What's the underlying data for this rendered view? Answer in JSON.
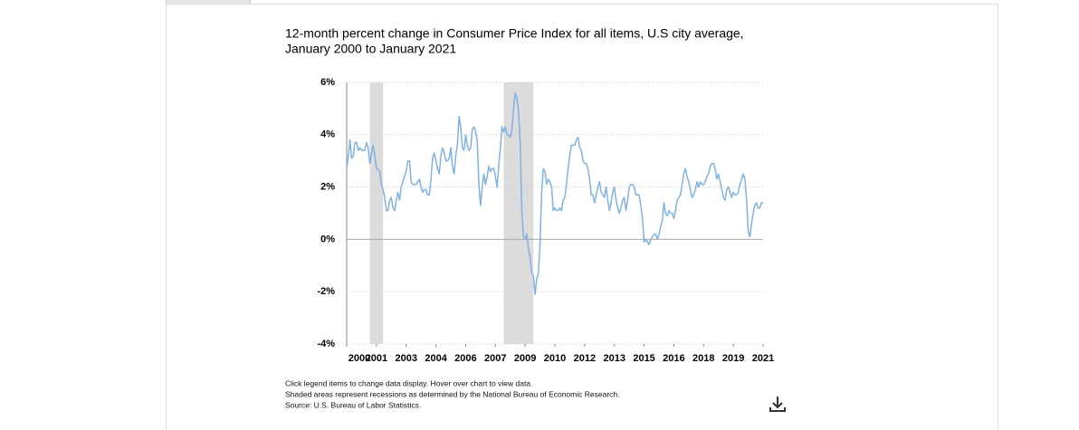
{
  "chart_data": {
    "type": "line",
    "title": [
      "12-month percent change in Consumer Price Index for all items, U.S city average,",
      "January 2000 to January 2021"
    ],
    "notes": [
      "Click legend items to change data display. Hover over chart to view data.",
      "Shaded areas represent recessions as determined by the National Bureau of Economic Research.",
      "Source: U.S. Bureau of Labor Statistics."
    ],
    "xlim": [
      2000,
      2021
    ],
    "xticks": [
      {
        "value": 2000,
        "label": "2000"
      },
      {
        "value": 2001.5,
        "label": "2001"
      },
      {
        "value": 2003,
        "label": "2003"
      },
      {
        "value": 2004.5,
        "label": "2004"
      },
      {
        "value": 2006,
        "label": "2006"
      },
      {
        "value": 2007.5,
        "label": "2007"
      },
      {
        "value": 2009,
        "label": "2009"
      },
      {
        "value": 2010.5,
        "label": "2010"
      },
      {
        "value": 2012,
        "label": "2012"
      },
      {
        "value": 2013.5,
        "label": "2013"
      },
      {
        "value": 2015,
        "label": "2015"
      },
      {
        "value": 2016.5,
        "label": "2016"
      },
      {
        "value": 2018,
        "label": "2018"
      },
      {
        "value": 2019.5,
        "label": "2019"
      },
      {
        "value": 2021,
        "label": "2021"
      }
    ],
    "ylim": [
      -4,
      6
    ],
    "yticks": [
      {
        "value": -4,
        "label": "-4%"
      },
      {
        "value": -2,
        "label": "-2%"
      },
      {
        "value": 0,
        "label": "0%"
      },
      {
        "value": 2,
        "label": "2%"
      },
      {
        "value": 4,
        "label": "4%"
      },
      {
        "value": 6,
        "label": "6%"
      }
    ],
    "grid": true,
    "recessions": [
      [
        2001.167,
        2001.833
      ],
      [
        2007.917,
        2009.417
      ]
    ],
    "recession_color": "#dcdcdc",
    "x": [
      2000,
      2000.083,
      2000.167,
      2000.25,
      2000.333,
      2000.417,
      2000.5,
      2000.583,
      2000.667,
      2000.75,
      2000.833,
      2000.917,
      2001,
      2001.083,
      2001.167,
      2001.25,
      2001.333,
      2001.417,
      2001.5,
      2001.583,
      2001.667,
      2001.75,
      2001.833,
      2001.917,
      2002,
      2002.083,
      2002.167,
      2002.25,
      2002.333,
      2002.417,
      2002.5,
      2002.583,
      2002.667,
      2002.75,
      2002.833,
      2002.917,
      2003,
      2003.083,
      2003.167,
      2003.25,
      2003.333,
      2003.417,
      2003.5,
      2003.583,
      2003.667,
      2003.75,
      2003.833,
      2003.917,
      2004,
      2004.083,
      2004.167,
      2004.25,
      2004.333,
      2004.417,
      2004.5,
      2004.583,
      2004.667,
      2004.75,
      2004.833,
      2004.917,
      2005,
      2005.083,
      2005.167,
      2005.25,
      2005.333,
      2005.417,
      2005.5,
      2005.583,
      2005.667,
      2005.75,
      2005.833,
      2005.917,
      2006,
      2006.083,
      2006.167,
      2006.25,
      2006.333,
      2006.417,
      2006.5,
      2006.583,
      2006.667,
      2006.75,
      2006.833,
      2006.917,
      2007,
      2007.083,
      2007.167,
      2007.25,
      2007.333,
      2007.417,
      2007.5,
      2007.583,
      2007.667,
      2007.75,
      2007.833,
      2007.917,
      2008,
      2008.083,
      2008.167,
      2008.25,
      2008.333,
      2008.417,
      2008.5,
      2008.583,
      2008.667,
      2008.75,
      2008.833,
      2008.917,
      2009,
      2009.083,
      2009.167,
      2009.25,
      2009.333,
      2009.417,
      2009.5,
      2009.583,
      2009.667,
      2009.75,
      2009.833,
      2009.917,
      2010,
      2010.083,
      2010.167,
      2010.25,
      2010.333,
      2010.417,
      2010.5,
      2010.583,
      2010.667,
      2010.75,
      2010.833,
      2010.917,
      2011,
      2011.083,
      2011.167,
      2011.25,
      2011.333,
      2011.417,
      2011.5,
      2011.583,
      2011.667,
      2011.75,
      2011.833,
      2011.917,
      2012,
      2012.083,
      2012.167,
      2012.25,
      2012.333,
      2012.417,
      2012.5,
      2012.583,
      2012.667,
      2012.75,
      2012.833,
      2012.917,
      2013,
      2013.083,
      2013.167,
      2013.25,
      2013.333,
      2013.417,
      2013.5,
      2013.583,
      2013.667,
      2013.75,
      2013.833,
      2013.917,
      2014,
      2014.083,
      2014.167,
      2014.25,
      2014.333,
      2014.417,
      2014.5,
      2014.583,
      2014.667,
      2014.75,
      2014.833,
      2014.917,
      2015,
      2015.083,
      2015.167,
      2015.25,
      2015.333,
      2015.417,
      2015.5,
      2015.583,
      2015.667,
      2015.75,
      2015.833,
      2015.917,
      2016,
      2016.083,
      2016.167,
      2016.25,
      2016.333,
      2016.417,
      2016.5,
      2016.583,
      2016.667,
      2016.75,
      2016.833,
      2016.917,
      2017,
      2017.083,
      2017.167,
      2017.25,
      2017.333,
      2017.417,
      2017.5,
      2017.583,
      2017.667,
      2017.75,
      2017.833,
      2017.917,
      2018,
      2018.083,
      2018.167,
      2018.25,
      2018.333,
      2018.417,
      2018.5,
      2018.583,
      2018.667,
      2018.75,
      2018.833,
      2018.917,
      2019,
      2019.083,
      2019.167,
      2019.25,
      2019.333,
      2019.417,
      2019.5,
      2019.583,
      2019.667,
      2019.75,
      2019.833,
      2019.917,
      2020,
      2020.083,
      2020.167,
      2020.25,
      2020.333,
      2020.417,
      2020.5,
      2020.583,
      2020.667,
      2020.75,
      2020.833,
      2020.917,
      2021
    ],
    "series": [
      {
        "color": "#7fb2e5",
        "values": [
          2.7,
          3.2,
          3.8,
          3.1,
          3.2,
          3.7,
          3.7,
          3.4,
          3.5,
          3.4,
          3.4,
          3.4,
          3.7,
          3.5,
          2.9,
          3.3,
          3.6,
          3.2,
          2.7,
          2.7,
          2.6,
          2.1,
          1.9,
          1.6,
          1.1,
          1.1,
          1.5,
          1.6,
          1.2,
          1.1,
          1.5,
          1.8,
          1.5,
          2.0,
          2.2,
          2.4,
          2.6,
          3.0,
          3.0,
          2.2,
          2.1,
          2.1,
          2.1,
          2.2,
          2.3,
          2.0,
          1.8,
          1.9,
          1.9,
          1.7,
          1.7,
          2.3,
          3.1,
          3.3,
          3.0,
          2.7,
          2.5,
          3.2,
          3.5,
          3.3,
          3.0,
          3.0,
          3.1,
          3.5,
          2.8,
          2.5,
          3.2,
          3.6,
          4.7,
          4.3,
          3.5,
          3.4,
          4.0,
          3.6,
          3.4,
          3.5,
          4.2,
          4.3,
          4.1,
          3.8,
          2.1,
          1.3,
          2.0,
          2.5,
          2.1,
          2.4,
          2.8,
          2.6,
          2.7,
          2.7,
          2.4,
          2.0,
          2.8,
          3.5,
          4.3,
          4.1,
          4.3,
          4.0,
          4.0,
          3.9,
          4.2,
          5.0,
          5.6,
          5.4,
          4.9,
          3.7,
          1.1,
          0.1,
          0.0,
          0.2,
          -0.4,
          -0.7,
          -1.3,
          -1.4,
          -2.1,
          -1.5,
          -1.3,
          -0.2,
          1.8,
          2.7,
          2.6,
          2.1,
          2.3,
          2.2,
          2.0,
          1.1,
          1.2,
          1.1,
          1.1,
          1.2,
          1.1,
          1.5,
          1.6,
          2.1,
          2.7,
          3.2,
          3.6,
          3.6,
          3.6,
          3.8,
          3.9,
          3.5,
          3.4,
          3.0,
          2.9,
          2.9,
          2.7,
          2.3,
          1.7,
          1.7,
          1.4,
          1.7,
          2.0,
          2.2,
          1.8,
          1.7,
          1.6,
          2.0,
          1.5,
          1.1,
          1.4,
          1.8,
          2.0,
          1.5,
          1.2,
          1.0,
          1.2,
          1.5,
          1.6,
          1.1,
          1.5,
          2.0,
          2.1,
          2.1,
          2.0,
          1.7,
          1.7,
          1.7,
          1.3,
          0.8,
          -0.1,
          0.0,
          -0.1,
          -0.2,
          0.0,
          0.1,
          0.2,
          0.2,
          0.0,
          0.2,
          0.5,
          0.7,
          1.4,
          1.0,
          0.9,
          1.1,
          1.0,
          1.0,
          0.8,
          1.1,
          1.5,
          1.6,
          1.7,
          2.1,
          2.5,
          2.7,
          2.4,
          2.2,
          1.9,
          1.6,
          1.7,
          1.9,
          2.2,
          2.0,
          2.2,
          2.1,
          2.1,
          2.2,
          2.4,
          2.5,
          2.8,
          2.9,
          2.9,
          2.7,
          2.3,
          2.5,
          2.2,
          1.9,
          1.6,
          1.5,
          1.9,
          2.0,
          1.8,
          1.6,
          1.8,
          1.7,
          1.7,
          1.8,
          2.1,
          2.3,
          2.5,
          2.3,
          1.5,
          0.3,
          0.1,
          0.6,
          1.0,
          1.3,
          1.4,
          1.2,
          1.2,
          1.4,
          1.4
        ]
      }
    ]
  }
}
